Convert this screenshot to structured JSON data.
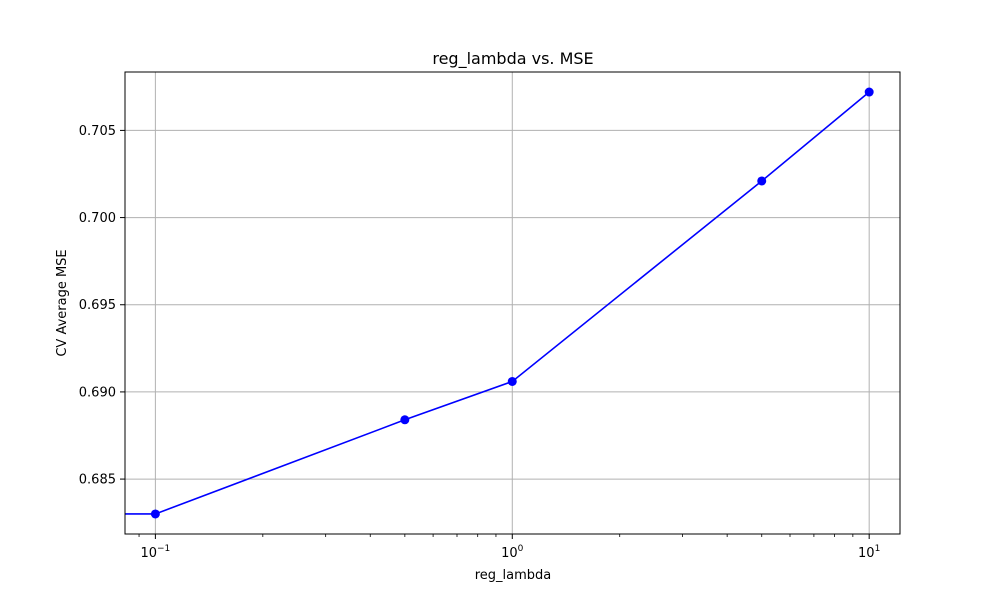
{
  "chart_data": {
    "type": "line",
    "title": "reg_lambda vs. MSE",
    "xlabel": "reg_lambda",
    "ylabel": "CV Average MSE",
    "x_scale": "log",
    "xlim": [
      0.0822,
      12.2
    ],
    "ylim": [
      0.68185,
      0.70835
    ],
    "grid": true,
    "x_ticks": [
      {
        "value": 0.1,
        "base": "10",
        "exp": "−1"
      },
      {
        "value": 1,
        "base": "10",
        "exp": "0"
      },
      {
        "value": 10,
        "base": "10",
        "exp": "1"
      }
    ],
    "y_ticks": [
      {
        "value": 0.685,
        "label": "0.685"
      },
      {
        "value": 0.69,
        "label": "0.690"
      },
      {
        "value": 0.695,
        "label": "0.695"
      },
      {
        "value": 0.7,
        "label": "0.700"
      },
      {
        "value": 0.705,
        "label": "0.705"
      }
    ],
    "series": [
      {
        "color": "#0000ff",
        "marker": "circle",
        "x": [
          0.01,
          0.1,
          0.5,
          1,
          5,
          10
        ],
        "y": [
          0.683,
          0.683,
          0.6884,
          0.6906,
          0.7021,
          0.7072
        ]
      }
    ]
  }
}
